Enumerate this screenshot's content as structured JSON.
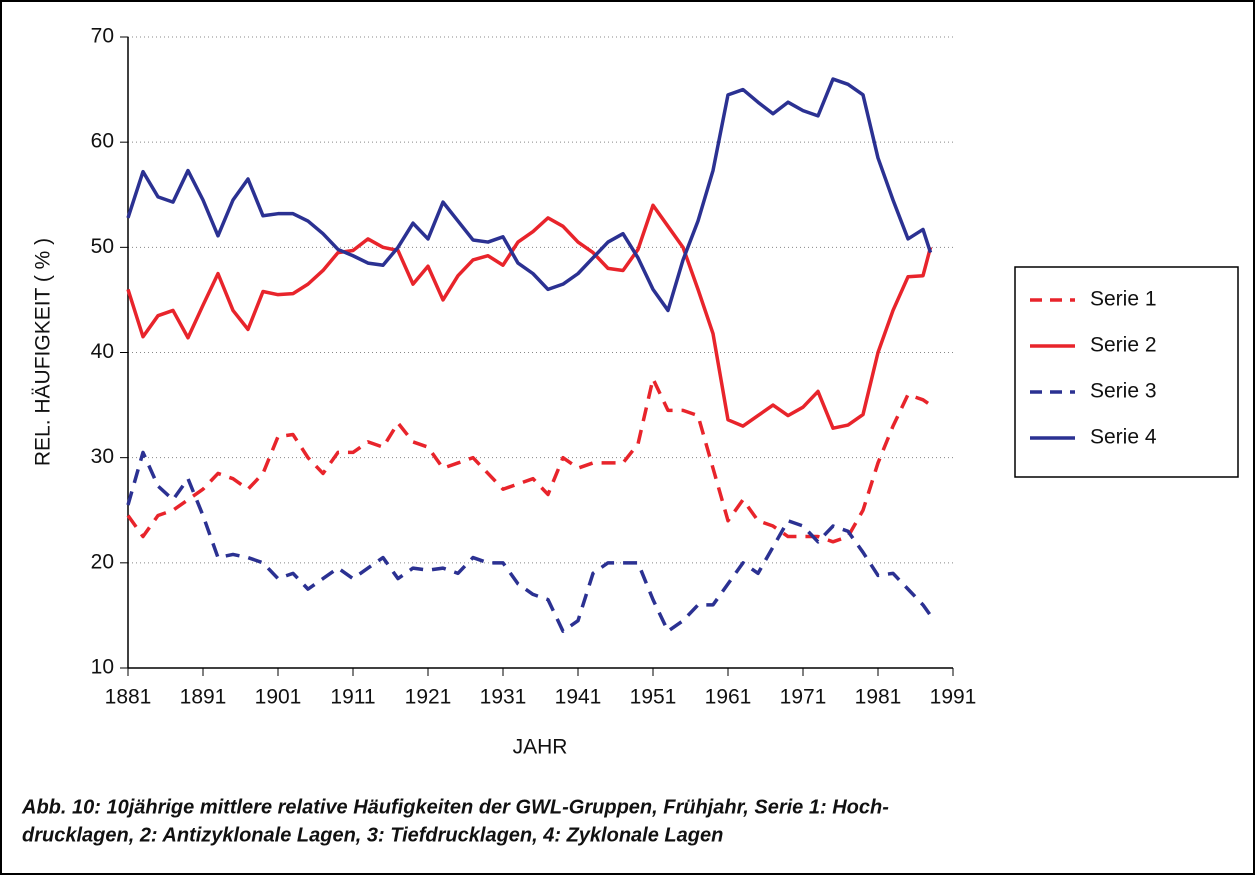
{
  "chart_data": {
    "type": "line",
    "ylabel": "REL. HÄUFIGKEIT ( % )",
    "xlabel": "JAHR",
    "caption": [
      "Abb. 10: 10jährige mittlere relative Häufigkeiten der GWL-Gruppen, Frühjahr, Serie 1: Hoch-",
      "drucklagen, 2: Antizyklonale Lagen, 3: Tiefdrucklagen, 4: Zyklonale Lagen"
    ],
    "xlim": [
      1881,
      1991
    ],
    "xticks": [
      1881,
      1891,
      1901,
      1911,
      1921,
      1931,
      1941,
      1951,
      1961,
      1971,
      1981,
      1991
    ],
    "ylim": [
      10,
      70
    ],
    "yticks": [
      10,
      20,
      30,
      40,
      50,
      60,
      70
    ],
    "grid": true,
    "legend": "right",
    "x": [
      1881,
      1883,
      1885,
      1887,
      1889,
      1891,
      1893,
      1895,
      1897,
      1899,
      1901,
      1903,
      1905,
      1907,
      1909,
      1911,
      1913,
      1915,
      1917,
      1919,
      1921,
      1923,
      1925,
      1927,
      1929,
      1931,
      1933,
      1935,
      1937,
      1939,
      1941,
      1943,
      1945,
      1947,
      1949,
      1951,
      1953,
      1955,
      1957,
      1959,
      1961,
      1963,
      1965,
      1967,
      1969,
      1971,
      1973,
      1975,
      1977,
      1979,
      1981,
      1983,
      1985,
      1987,
      1988
    ],
    "series": [
      {
        "name": "Serie 1",
        "color": "#e8242b",
        "dashed": true,
        "values": [
          24.5,
          22.5,
          24.5,
          25,
          26,
          27,
          28.5,
          28,
          27,
          28.5,
          32,
          32.2,
          30,
          28.5,
          30.5,
          30.5,
          31.5,
          31,
          33.3,
          31.5,
          31,
          29,
          29.5,
          30,
          28.5,
          27,
          27.5,
          28,
          26.5,
          30,
          29,
          29.5,
          29.5,
          29.5,
          31.3,
          37.5,
          34.5,
          34.5,
          34,
          29,
          24,
          26,
          24,
          23.5,
          22.5,
          22.5,
          22.5,
          22,
          22.5,
          25,
          29.5,
          33,
          36,
          35.5,
          35
        ]
      },
      {
        "name": "Serie 2",
        "color": "#e8242b",
        "dashed": false,
        "values": [
          46,
          41.5,
          43.5,
          44,
          41.4,
          44.5,
          47.5,
          44,
          42.2,
          45.8,
          45.5,
          45.6,
          46.5,
          47.8,
          49.5,
          49.7,
          50.8,
          50,
          49.7,
          46.5,
          48.2,
          45,
          47.3,
          48.8,
          49.2,
          48.3,
          50.5,
          51.5,
          52.8,
          52,
          50.5,
          49.5,
          48,
          47.8,
          49.8,
          54,
          52,
          50,
          46,
          41.8,
          33.6,
          33,
          34,
          35,
          34,
          34.8,
          36.3,
          32.8,
          33.1,
          34.1,
          40,
          44,
          47.2,
          47.3,
          50
        ]
      },
      {
        "name": "Serie 3",
        "color": "#2b3192",
        "dashed": true,
        "values": [
          25.5,
          30.5,
          27.3,
          26,
          28,
          24.5,
          20.5,
          20.8,
          20.5,
          20,
          18.5,
          19,
          17.5,
          18.5,
          19.5,
          18.5,
          19.5,
          20.5,
          18.5,
          19.5,
          19.3,
          19.5,
          19,
          20.5,
          20,
          20,
          18,
          17,
          16.5,
          13.5,
          14.5,
          19,
          20,
          20,
          20,
          16.5,
          13.5,
          14.5,
          16,
          16,
          18,
          20,
          19,
          21.5,
          24,
          23.5,
          22,
          23.5,
          23,
          21,
          18.8,
          19,
          17.5,
          16,
          15
        ]
      },
      {
        "name": "Serie 4",
        "color": "#2b3192",
        "dashed": false,
        "values": [
          52.8,
          57.2,
          54.8,
          54.3,
          57.3,
          54.5,
          51.1,
          54.5,
          56.5,
          53,
          53.2,
          53.2,
          52.5,
          51.3,
          49.8,
          49.2,
          48.5,
          48.3,
          50,
          52.3,
          50.8,
          54.3,
          52.5,
          50.7,
          50.5,
          51,
          48.5,
          47.5,
          46,
          46.5,
          47.5,
          49,
          50.5,
          51.3,
          49,
          46,
          44,
          48.8,
          52.5,
          57.3,
          64.5,
          65,
          63.8,
          62.7,
          63.8,
          63,
          62.5,
          66,
          65.5,
          64.5,
          58.5,
          54.5,
          50.8,
          51.7,
          49.5
        ]
      }
    ]
  }
}
